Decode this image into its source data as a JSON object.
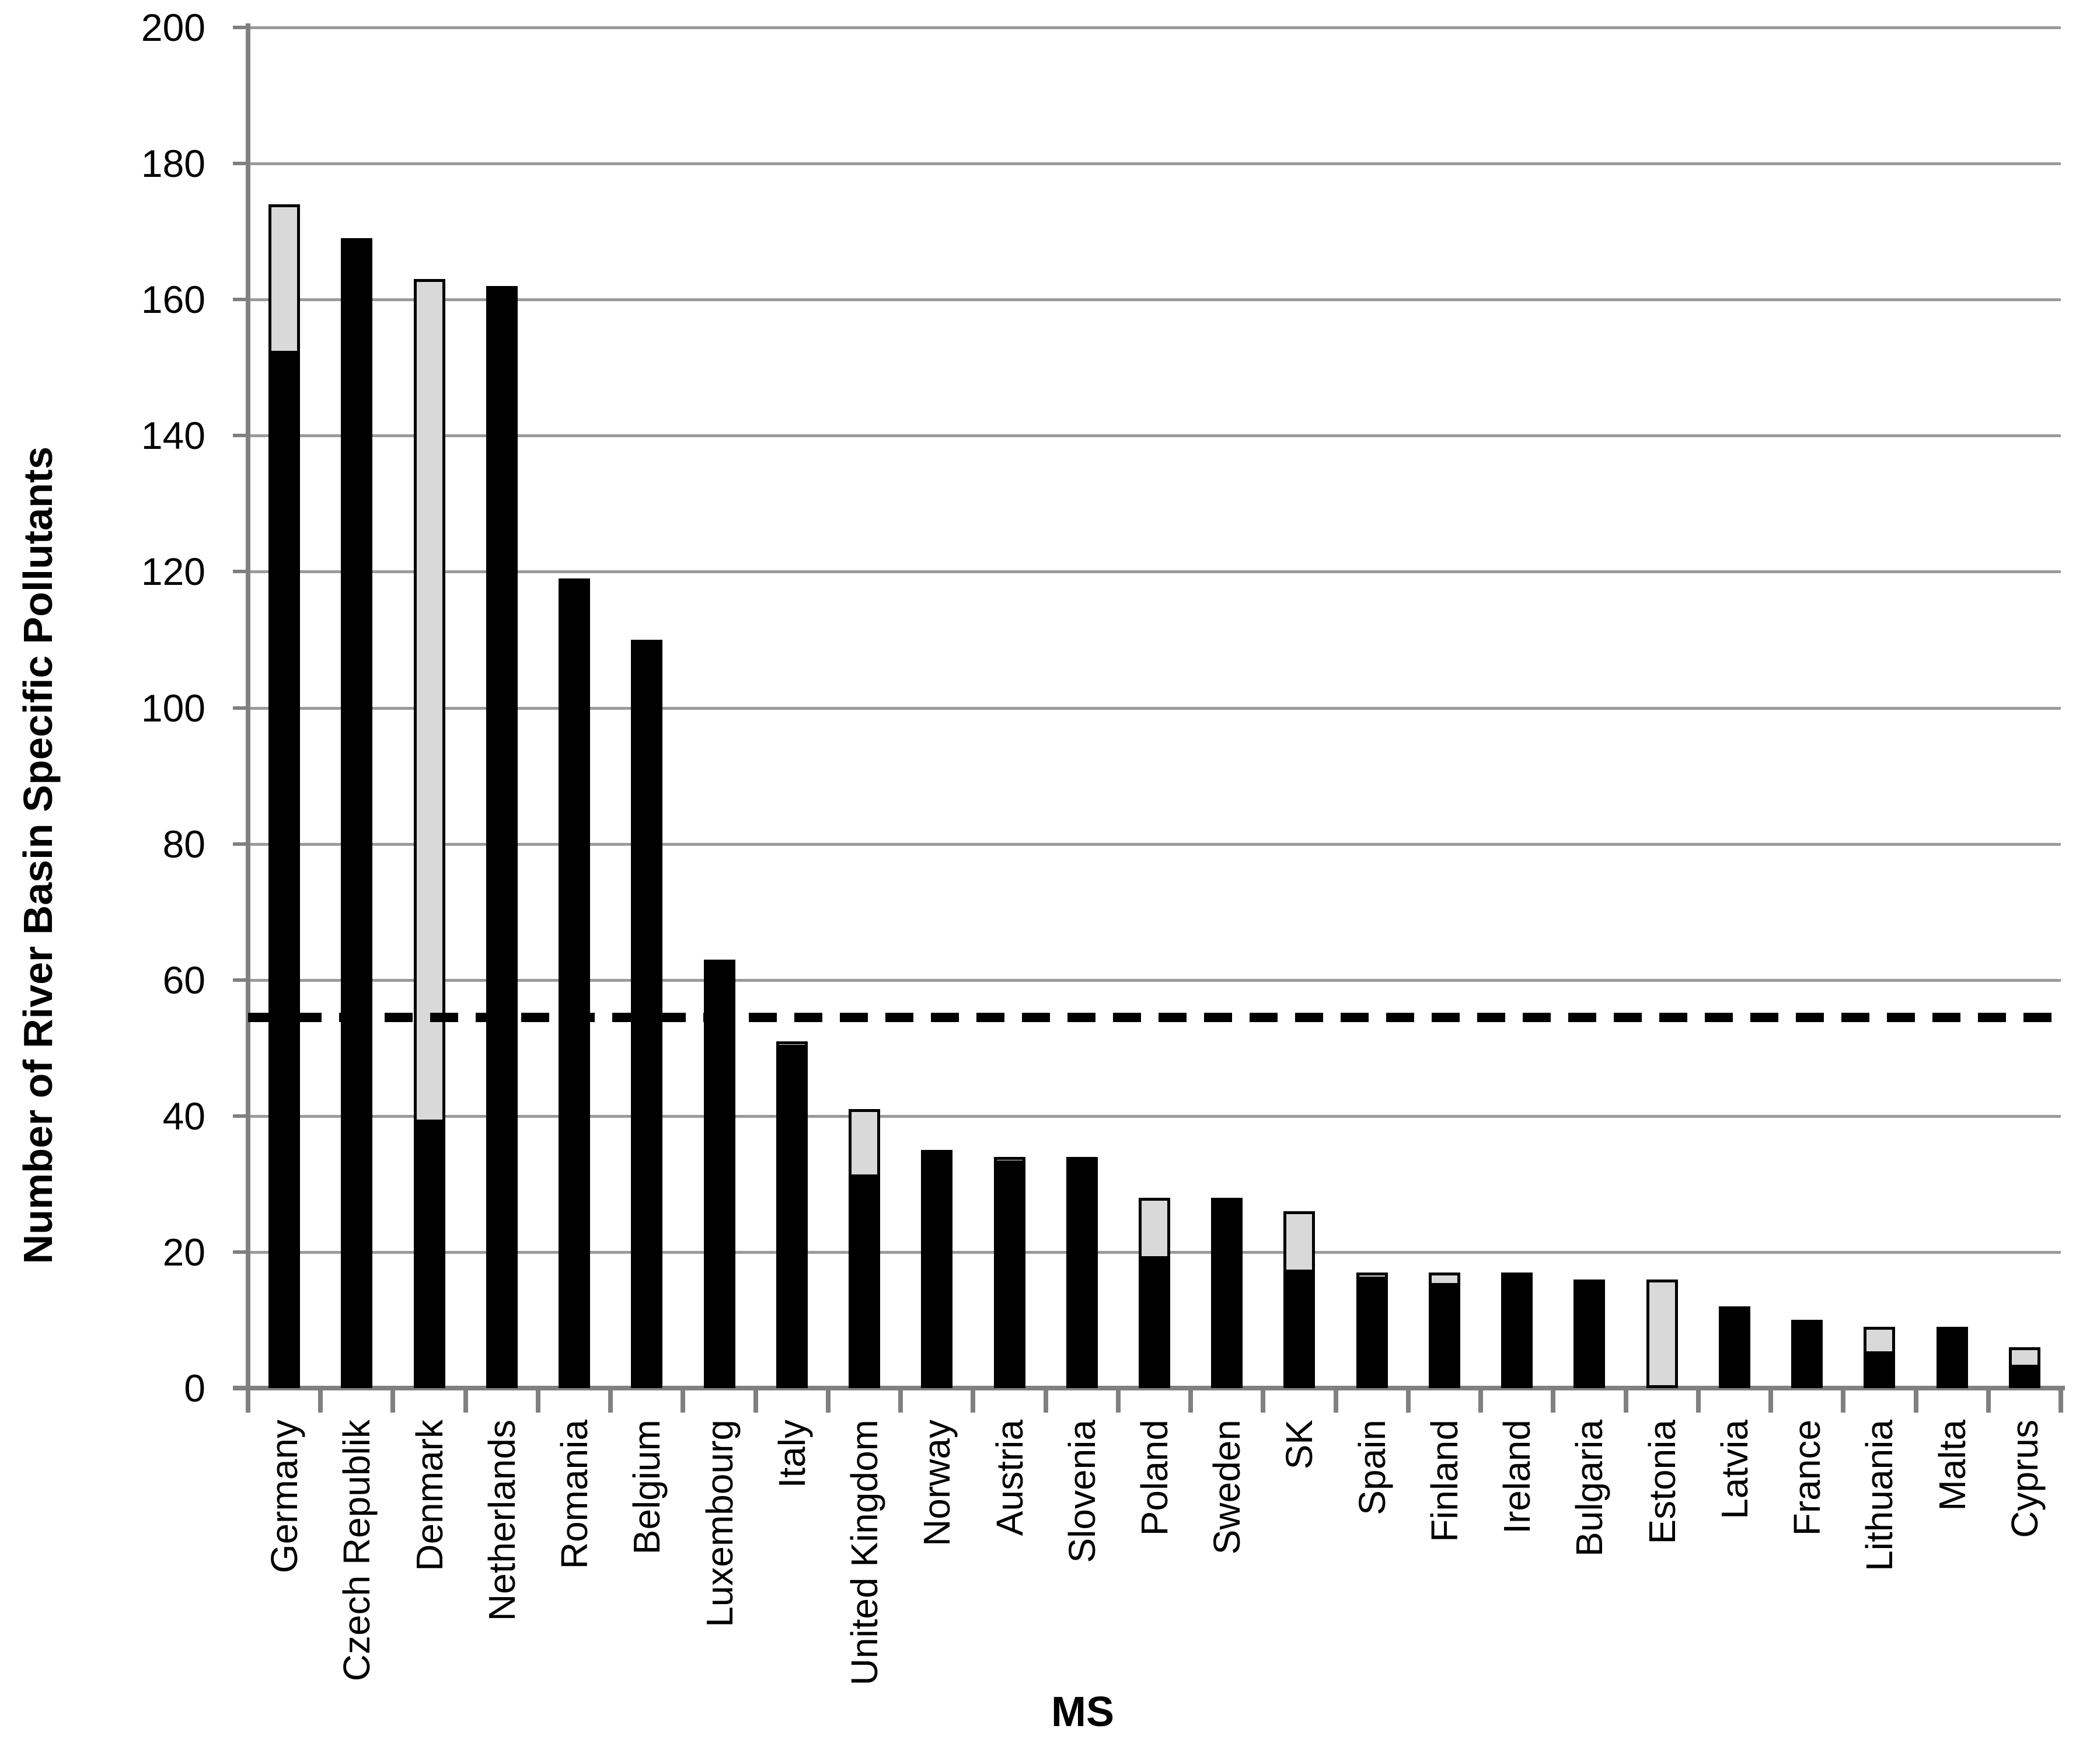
{
  "chart_data": {
    "type": "bar",
    "stacked": true,
    "title": "",
    "xlabel": "MS",
    "ylabel": "Number of River Basin Specific Pollutants",
    "ylim": [
      0,
      200
    ],
    "yticks": [
      0,
      20,
      40,
      60,
      80,
      100,
      120,
      140,
      160,
      180,
      200
    ],
    "grid": true,
    "legend": "none",
    "categories": [
      "Germany",
      "Czech Republik",
      "Denmark",
      "Netherlands",
      "Romania",
      "Belgium",
      "Luxembourg",
      "Italy",
      "United Kingdom",
      "Norway",
      "Austria",
      "Slovenia",
      "Poland",
      "Sweden",
      "SK",
      "Spain",
      "Finland",
      "Ireland",
      "Bulgaria",
      "Estonia",
      "Latvia",
      "France",
      "Lithuania",
      "Malta",
      "Cyprus"
    ],
    "series": [
      {
        "name": "black-segment",
        "color": "#000000",
        "values": [
          152,
          169,
          39,
          162,
          119,
          110,
          63,
          50,
          31,
          35,
          33,
          34,
          19,
          28,
          17,
          16,
          15,
          17,
          16,
          0,
          12,
          10,
          5,
          9,
          3
        ]
      },
      {
        "name": "gray-segment",
        "color": "#d9d9d9",
        "values": [
          22,
          0,
          124,
          0,
          0,
          0,
          0,
          1,
          10,
          0,
          1,
          0,
          9,
          0,
          9,
          1,
          2,
          0,
          0,
          16,
          0,
          0,
          4,
          0,
          3
        ]
      }
    ],
    "totals": [
      174,
      169,
      163,
      162,
      119,
      110,
      63,
      51,
      41,
      35,
      34,
      34,
      28,
      28,
      26,
      17,
      17,
      17,
      16,
      16,
      12,
      10,
      9,
      9,
      6
    ],
    "reference_line": {
      "style": "dashed",
      "value": 54.5,
      "color": "#000000"
    }
  },
  "colors": {
    "background": "#ffffff",
    "bar_black": "#000000",
    "bar_gray": "#d9d9d9",
    "bar_gray_border": "#000000",
    "gridline": "#9b9b9b",
    "axis": "#808080",
    "text": "#000000"
  }
}
